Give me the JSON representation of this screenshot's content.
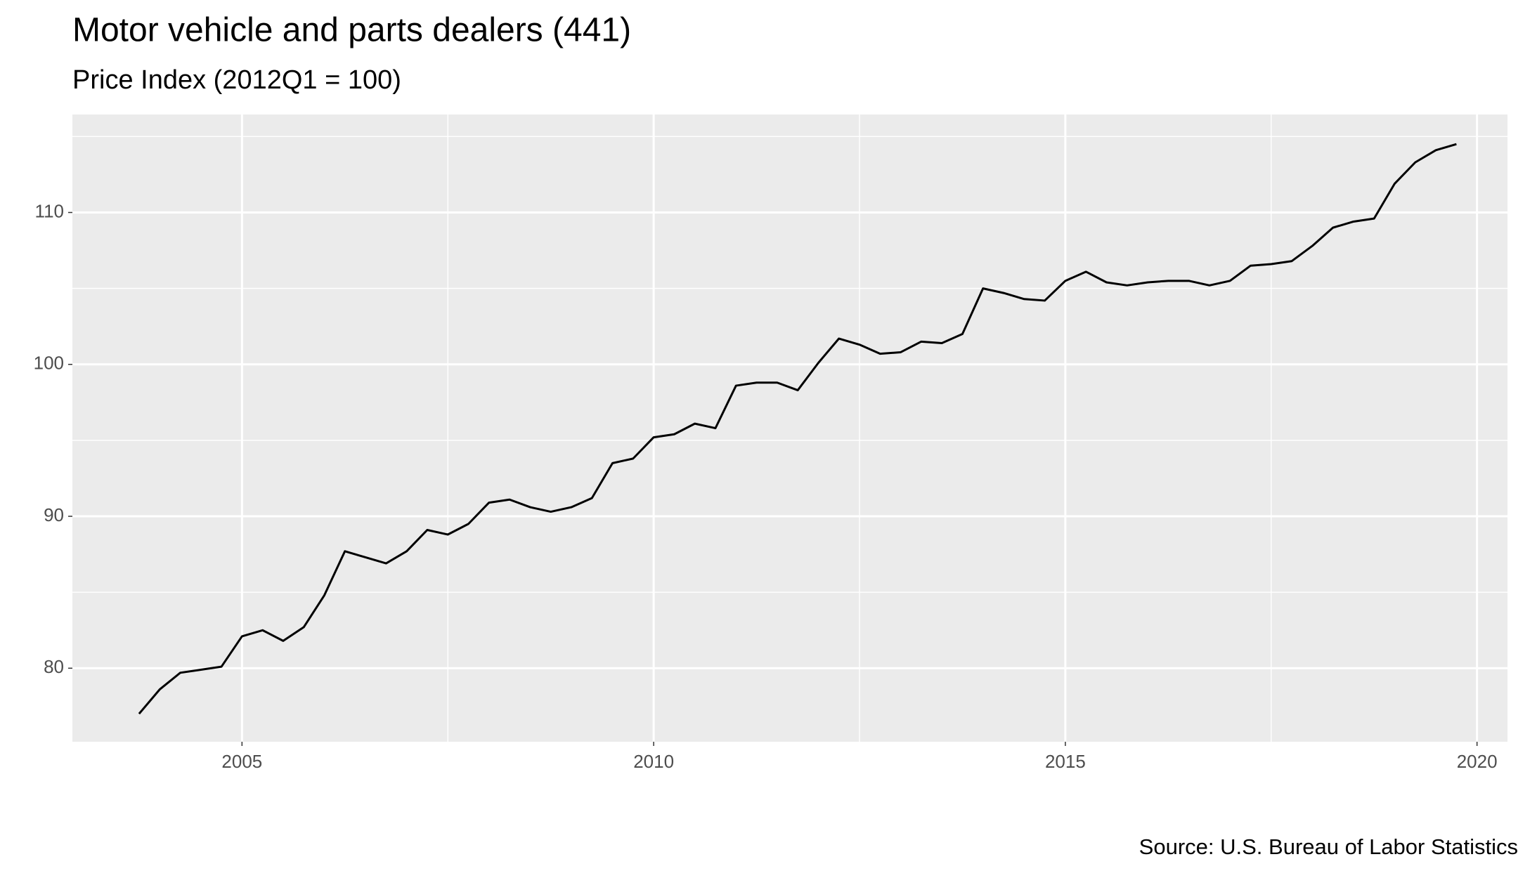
{
  "chart_data": {
    "type": "line",
    "title": "Motor vehicle and parts dealers (441)",
    "subtitle": "Price Index (2012Q1 = 100)",
    "source": "Source: U.S. Bureau of Labor Statistics",
    "x": [
      2003.75,
      2004,
      2004.25,
      2004.5,
      2004.75,
      2005,
      2005.25,
      2005.5,
      2005.75,
      2006,
      2006.25,
      2006.5,
      2006.75,
      2007,
      2007.25,
      2007.5,
      2007.75,
      2008,
      2008.25,
      2008.5,
      2008.75,
      2009,
      2009.25,
      2009.5,
      2009.75,
      2010,
      2010.25,
      2010.5,
      2010.75,
      2011,
      2011.25,
      2011.5,
      2011.75,
      2012,
      2012.25,
      2012.5,
      2012.75,
      2013,
      2013.25,
      2013.5,
      2013.75,
      2014,
      2014.25,
      2014.5,
      2014.75,
      2015,
      2015.25,
      2015.5,
      2015.75,
      2016,
      2016.25,
      2016.5,
      2016.75,
      2017,
      2017.25,
      2017.5,
      2017.75,
      2018,
      2018.25,
      2018.5,
      2018.75,
      2019,
      2019.25,
      2019.5,
      2019.75
    ],
    "series": [
      {
        "name": "Price Index",
        "color": "#000000",
        "values": [
          77.0,
          78.6,
          79.7,
          79.9,
          80.1,
          82.1,
          82.5,
          81.8,
          82.7,
          84.8,
          87.7,
          87.3,
          86.9,
          87.7,
          89.1,
          88.8,
          89.5,
          90.9,
          91.1,
          90.6,
          90.3,
          90.6,
          91.2,
          93.5,
          93.8,
          95.2,
          95.4,
          96.1,
          95.8,
          98.6,
          98.8,
          98.8,
          98.3,
          100.1,
          101.7,
          101.3,
          100.7,
          100.8,
          101.5,
          101.4,
          102.0,
          105.0,
          104.7,
          104.3,
          104.2,
          105.5,
          106.1,
          105.4,
          105.2,
          105.4,
          105.5,
          105.5,
          105.2,
          105.5,
          106.5,
          106.6,
          106.8,
          107.8,
          109.0,
          109.4,
          109.6,
          111.9,
          113.3,
          114.1,
          114.5
        ]
      }
    ],
    "xlim": [
      2002.94,
      2020.37
    ],
    "xticks": [
      2005,
      2010,
      2015,
      2020
    ],
    "ylim": [
      75.16,
      116.45
    ],
    "yticks": [
      80,
      90,
      100,
      110
    ],
    "grid": true
  }
}
